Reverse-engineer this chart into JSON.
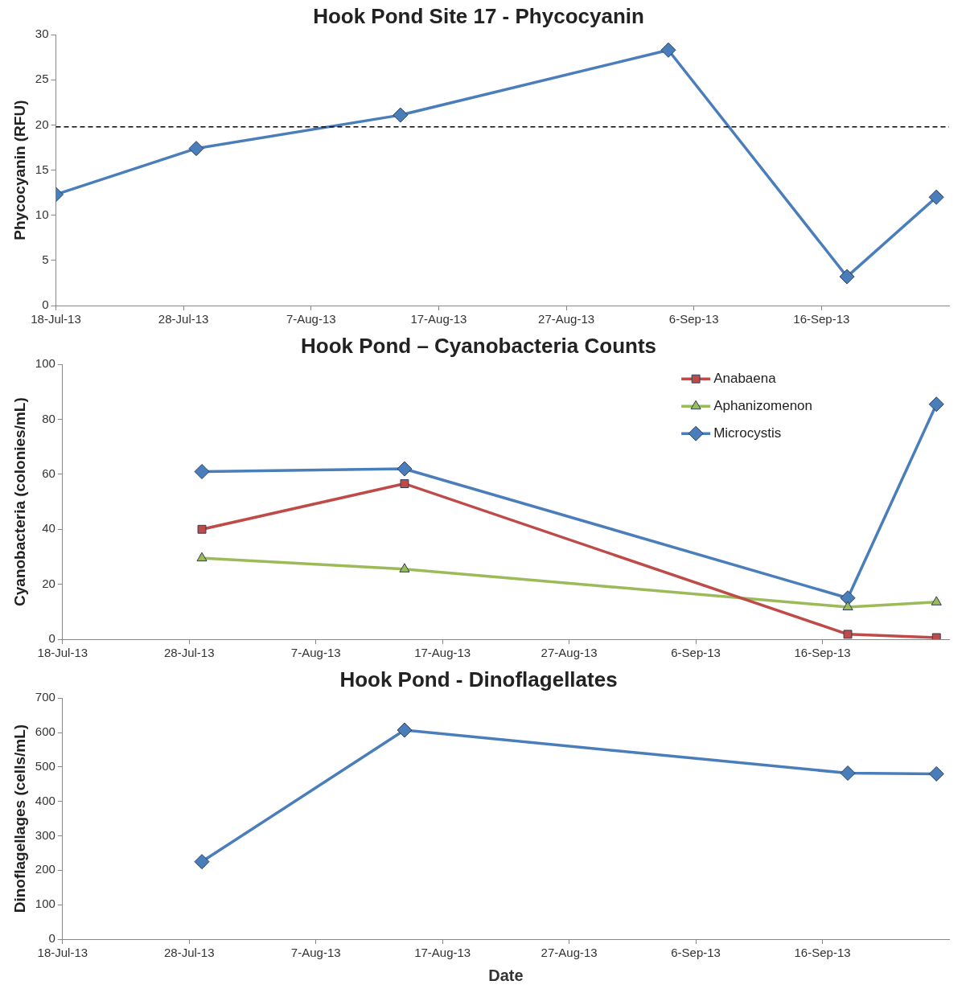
{
  "chart_data": [
    {
      "type": "line",
      "title": "Hook Pond Site 17 - Phycocyanin",
      "ylabel": "Phycocyanin (RFU)",
      "x": [
        "--07-18",
        "--07-29",
        "--08-14",
        "--09-04",
        "--09-18",
        "--09-25"
      ],
      "series": [
        {
          "color": "#4a7ebb",
          "marker": "diamond",
          "values": [
            12.3,
            17.4,
            21.1,
            28.3,
            3.2,
            12
          ]
        }
      ],
      "xlim": [
        "--07-18",
        "--09-26"
      ],
      "xticks": [
        {
          "value": "--07-18",
          "label": "18-Jul-13"
        },
        {
          "value": "--07-28",
          "label": "28-Jul-13"
        },
        {
          "value": "--08-07",
          "label": "7-Aug-13"
        },
        {
          "value": "--08-17",
          "label": "17-Aug-13"
        },
        {
          "value": "--08-27",
          "label": "27-Aug-13"
        },
        {
          "value": "--09-06",
          "label": "6-Sep-13"
        },
        {
          "value": "--09-16",
          "label": "16-Sep-13"
        }
      ],
      "ylim": [
        0,
        30
      ],
      "yticks": [
        0,
        5,
        10,
        15,
        20,
        25,
        30
      ],
      "ref_lines": [
        {
          "axis": "y",
          "value": 19.8,
          "color": "#000000",
          "line_style": "dashed"
        }
      ]
    },
    {
      "type": "line",
      "title": "Hook Pond – Cyanobacteria Counts",
      "ylabel": "Cyanobacteria (colonies/mL)",
      "x": [
        "--07-29",
        "--08-14",
        "--09-18",
        "--09-25"
      ],
      "series": [
        {
          "name": "Anabaena",
          "color": "#be4b48",
          "marker": "square",
          "values": [
            40,
            56.6,
            1.8,
            0.6
          ]
        },
        {
          "name": "Aphanizomenon",
          "color": "#9bbb59",
          "marker": "triangle",
          "values": [
            29.5,
            25.5,
            11.7,
            13.5
          ]
        },
        {
          "name": "Microcystis",
          "color": "#4a7ebb",
          "marker": "diamond",
          "values": [
            61,
            62,
            15,
            85.5
          ]
        }
      ],
      "xlim": [
        "--07-18",
        "--09-26"
      ],
      "xticks": [
        {
          "value": "--07-18",
          "label": "18-Jul-13"
        },
        {
          "value": "--07-28",
          "label": "28-Jul-13"
        },
        {
          "value": "--08-07",
          "label": "7-Aug-13"
        },
        {
          "value": "--08-17",
          "label": "17-Aug-13"
        },
        {
          "value": "--08-27",
          "label": "27-Aug-13"
        },
        {
          "value": "--09-06",
          "label": "6-Sep-13"
        },
        {
          "value": "--09-16",
          "label": "16-Sep-13"
        }
      ],
      "ylim": [
        0,
        100
      ],
      "yticks": [
        0,
        20,
        40,
        60,
        80,
        100
      ],
      "legend": "top right"
    },
    {
      "type": "line",
      "title": "Hook Pond - Dinoflagellates",
      "xlabel": "Date",
      "ylabel": "Dinoflagellages (cells/mL)",
      "x": [
        "--07-29",
        "--08-14",
        "--09-18",
        "--09-25"
      ],
      "series": [
        {
          "color": "#4a7ebb",
          "marker": "diamond",
          "values": [
            225,
            607,
            482,
            480
          ]
        }
      ],
      "xlim": [
        "--07-18",
        "--09-26"
      ],
      "xticks": [
        {
          "value": "--07-18",
          "label": "18-Jul-13"
        },
        {
          "value": "--07-28",
          "label": "28-Jul-13"
        },
        {
          "value": "--08-07",
          "label": "7-Aug-13"
        },
        {
          "value": "--08-17",
          "label": "17-Aug-13"
        },
        {
          "value": "--08-27",
          "label": "27-Aug-13"
        },
        {
          "value": "--09-06",
          "label": "6-Sep-13"
        },
        {
          "value": "--09-16",
          "label": "16-Sep-13"
        }
      ],
      "ylim": [
        0,
        700
      ],
      "yticks": [
        0,
        100,
        200,
        300,
        400,
        500,
        600,
        700
      ]
    }
  ]
}
